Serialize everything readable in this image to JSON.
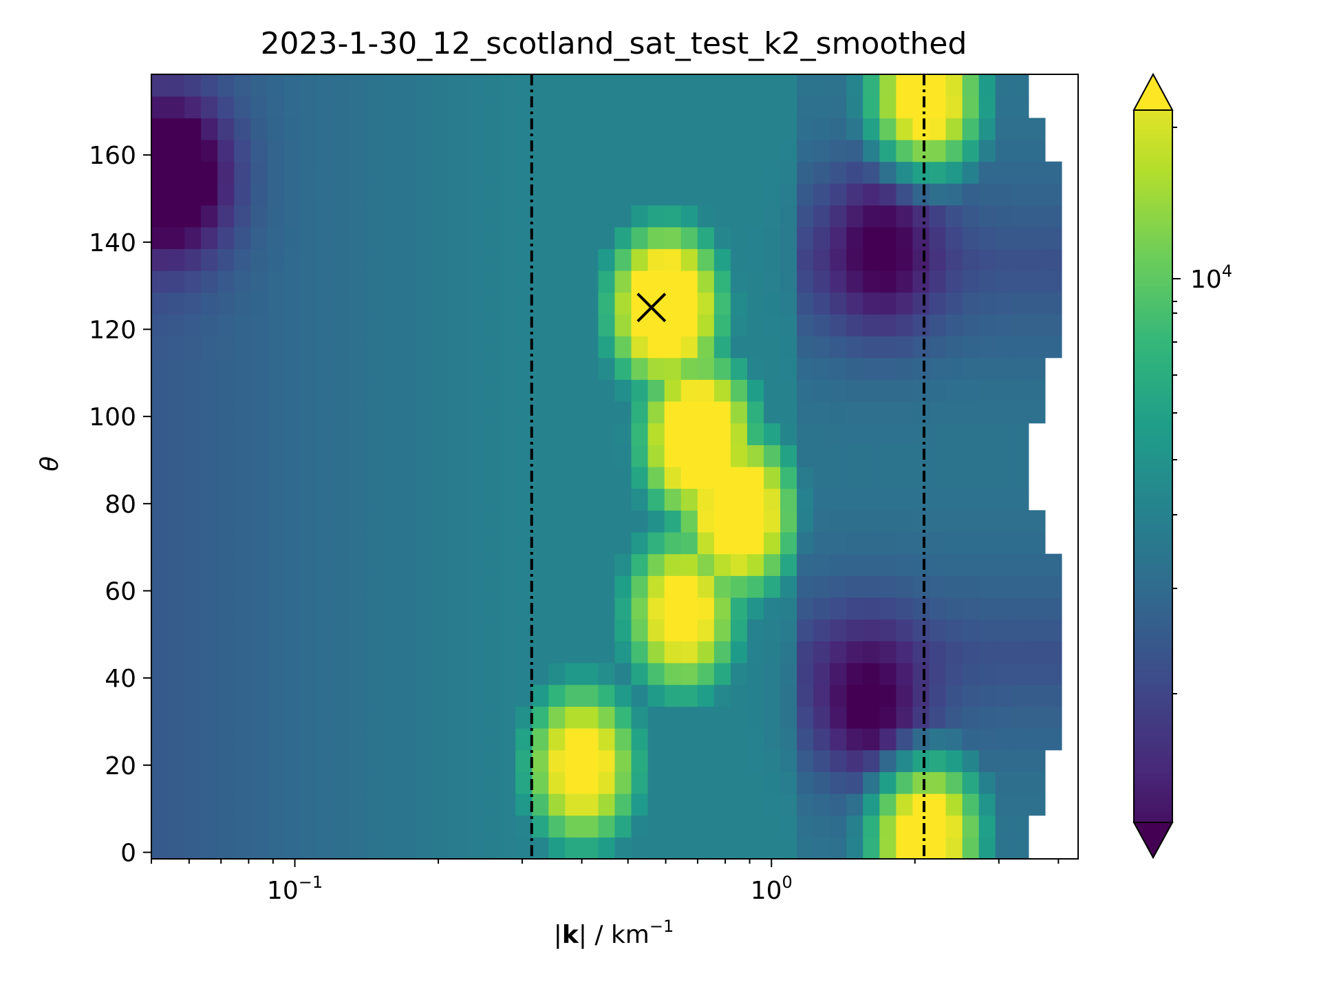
{
  "chart_data": {
    "type": "heatmap",
    "title": "2023-1-30_12_scotland_sat_test_k2_smoothed",
    "xlabel_parts": [
      "|",
      "k",
      "| / km",
      "−1"
    ],
    "ylabel": "θ",
    "xscale": "log",
    "xlim": [
      0.05,
      4.4
    ],
    "ylim": [
      -1.5,
      178.5
    ],
    "x_ticks": [
      {
        "value": 0.1,
        "base": "10",
        "exp": "−1"
      },
      {
        "value": 1.0,
        "base": "10",
        "exp": "0"
      }
    ],
    "y_ticks": [
      0,
      20,
      40,
      60,
      80,
      100,
      120,
      140,
      160
    ],
    "colorbar": {
      "scale": "log",
      "extend": "both",
      "colormap": "viridis",
      "ticks": [
        {
          "value": 10000,
          "base": "10",
          "exp": "4"
        }
      ]
    },
    "vertical_lines": [
      {
        "x": 0.314,
        "style": "dash-dot",
        "color": "#000000"
      },
      {
        "x": 2.09,
        "style": "dash-dot",
        "color": "#000000"
      }
    ],
    "marker": {
      "x": 0.56,
      "y": 125,
      "symbol": "x",
      "color": "#000000"
    },
    "spectrum_peaks": [
      {
        "k": 0.6,
        "theta": 125,
        "intensity": 0.98
      },
      {
        "k": 0.7,
        "theta": 95,
        "intensity": 0.98
      },
      {
        "k": 0.85,
        "theta": 78,
        "intensity": 0.95
      },
      {
        "k": 0.65,
        "theta": 55,
        "intensity": 0.85
      },
      {
        "k": 0.4,
        "theta": 20,
        "intensity": 0.85
      },
      {
        "k": 2.1,
        "theta": 5,
        "intensity": 1.1
      },
      {
        "k": 2.1,
        "theta": 172,
        "intensity": 1.1
      }
    ],
    "spectrum_troughs": [
      {
        "k": 0.055,
        "theta": 155,
        "intensity": 0.0
      },
      {
        "k": 1.7,
        "theta": 138,
        "intensity": 0.05
      },
      {
        "k": 1.6,
        "theta": 35,
        "intensity": 0.05
      }
    ]
  }
}
